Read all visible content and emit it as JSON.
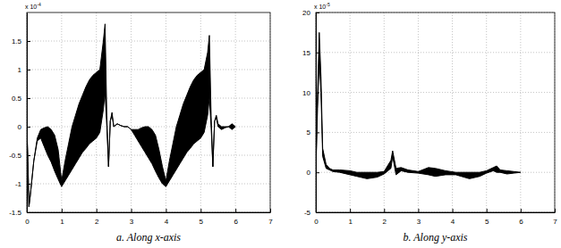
{
  "chart_data": [
    {
      "type": "band",
      "caption": "a. Along x-axis",
      "y_scale_label": "x 10",
      "y_scale_exponent": "-4",
      "x": [
        0,
        0.03,
        0.06,
        0.1,
        0.2,
        0.3,
        0.4,
        0.5,
        0.6,
        0.7,
        0.8,
        0.9,
        1.0,
        1.1,
        1.2,
        1.3,
        1.4,
        1.5,
        1.6,
        1.7,
        1.8,
        1.9,
        2.0,
        2.1,
        2.2,
        2.25,
        2.3,
        2.35,
        2.4,
        2.45,
        2.5,
        2.6,
        2.7,
        2.8,
        2.9,
        3.0,
        3.1,
        3.2,
        3.3,
        3.4,
        3.5,
        3.6,
        3.7,
        3.8,
        3.9,
        4.0,
        4.1,
        4.2,
        4.3,
        4.4,
        4.5,
        4.6,
        4.7,
        4.8,
        4.9,
        5.0,
        5.1,
        5.2,
        5.25,
        5.3,
        5.35,
        5.4,
        5.45,
        5.5,
        5.6,
        5.7,
        5.8,
        5.9,
        6.0
      ],
      "series": [
        {
          "color": "#000000",
          "values": [
            0,
            -0.6,
            -1.4,
            -1.2,
            -0.6,
            -0.2,
            -0.05,
            -0.02,
            0,
            -0.05,
            -0.15,
            -0.4,
            -0.95,
            -0.6,
            -0.3,
            0,
            0.2,
            0.4,
            0.55,
            0.7,
            0.82,
            0.9,
            0.95,
            1.0,
            1.5,
            1.8,
            0.2,
            -0.7,
            0.1,
            0.25,
            0,
            0.05,
            0.02,
            0,
            0,
            -0.05,
            -0.05,
            -0.05,
            -0.02,
            0,
            0,
            -0.05,
            -0.15,
            -0.4,
            -0.7,
            -0.95,
            -0.6,
            -0.3,
            0,
            0.2,
            0.4,
            0.55,
            0.7,
            0.82,
            0.9,
            0.95,
            1.0,
            1.3,
            1.6,
            0.2,
            -0.7,
            0.1,
            0.2,
            0.05,
            0,
            0,
            0,
            0.05,
            0
          ]
        },
        {
          "color": "#000000",
          "values": [
            0,
            -0.6,
            -1.4,
            -1.2,
            -0.6,
            -0.25,
            -0.2,
            -0.35,
            -0.5,
            -0.62,
            -0.78,
            -0.92,
            -1.05,
            -0.95,
            -0.85,
            -0.75,
            -0.65,
            -0.55,
            -0.45,
            -0.38,
            -0.3,
            -0.25,
            -0.2,
            -0.1,
            0.3,
            0.6,
            0,
            -0.7,
            0.1,
            0.2,
            0,
            0.05,
            0.02,
            0,
            0,
            -0.05,
            -0.15,
            -0.25,
            -0.35,
            -0.45,
            -0.55,
            -0.65,
            -0.78,
            -0.9,
            -1.0,
            -1.05,
            -0.95,
            -0.85,
            -0.75,
            -0.65,
            -0.55,
            -0.45,
            -0.38,
            -0.3,
            -0.25,
            -0.2,
            -0.1,
            0.2,
            0.5,
            0,
            -0.7,
            0.1,
            0.15,
            0,
            -0.05,
            -0.02,
            0,
            -0.05,
            0
          ]
        }
      ],
      "xlim": [
        0,
        7
      ],
      "xticks": [
        0,
        1,
        2,
        3,
        4,
        5,
        6,
        7
      ],
      "ylim": [
        -1.5,
        2
      ],
      "yticks": [
        -1.5,
        -1,
        -0.5,
        0,
        0.5,
        1,
        1.5
      ],
      "grid": true
    },
    {
      "type": "band",
      "caption": "b. Along y-axis",
      "y_scale_label": "x 10",
      "y_scale_exponent": "-5",
      "x": [
        0,
        0.05,
        0.1,
        0.15,
        0.2,
        0.3,
        0.4,
        0.5,
        0.7,
        1.0,
        1.2,
        1.5,
        1.8,
        2.0,
        2.2,
        2.25,
        2.35,
        2.5,
        2.7,
        3.0,
        3.3,
        3.5,
        3.8,
        4.1,
        4.5,
        4.8,
        5.0,
        5.2,
        5.3,
        5.4,
        5.6,
        5.8,
        6.0
      ],
      "series": [
        {
          "color": "#000000",
          "values": [
            0,
            10,
            17.5,
            12,
            3,
            1,
            0.5,
            0.3,
            0.3,
            0.2,
            0,
            0,
            0,
            0.1,
            1.5,
            2.7,
            0.5,
            0.6,
            0.3,
            0.1,
            0.6,
            0.5,
            0.2,
            0,
            0,
            0,
            0.2,
            0.6,
            0.8,
            0.3,
            0.2,
            0.1,
            0
          ]
        },
        {
          "color": "#000000",
          "values": [
            0,
            8,
            14,
            10,
            2,
            0.5,
            0.3,
            0.1,
            0,
            -0.3,
            -0.5,
            -0.8,
            -0.6,
            -0.2,
            0.5,
            2.0,
            -0.3,
            0.2,
            0,
            -0.1,
            -0.3,
            -0.5,
            -0.3,
            -0.3,
            -0.8,
            -0.5,
            -0.1,
            0.2,
            0,
            0,
            -0.2,
            -0.1,
            0
          ]
        }
      ],
      "xlim": [
        0,
        7
      ],
      "xticks": [
        0,
        1,
        2,
        3,
        4,
        5,
        6,
        7
      ],
      "ylim": [
        -5,
        20
      ],
      "yticks": [
        -5,
        0,
        5,
        10,
        15,
        20
      ],
      "grid": true
    }
  ]
}
